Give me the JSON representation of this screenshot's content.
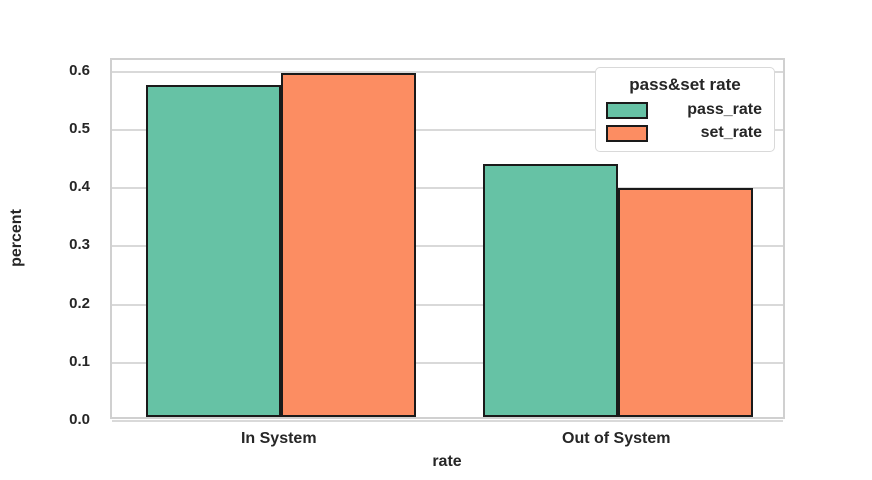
{
  "colors": {
    "pass_rate": "#66c2a5",
    "set_rate": "#fc8d62",
    "bar_edge": "#1a1a1a",
    "grid": "#d9d9d9",
    "axis_border": "#d0d0d0",
    "text": "#262626",
    "background": "#ffffff"
  },
  "chart_data": {
    "type": "bar",
    "categories": [
      "In System",
      "Out of System"
    ],
    "series": [
      {
        "name": "pass_rate",
        "values": [
          0.57,
          0.435
        ],
        "color": "#66c2a5"
      },
      {
        "name": "set_rate",
        "values": [
          0.59,
          0.393
        ],
        "color": "#fc8d62"
      }
    ],
    "title": "",
    "xlabel": "rate",
    "ylabel": "percent",
    "ylim": [
      0,
      0.62
    ],
    "yticks": [
      0.0,
      0.1,
      0.2,
      0.3,
      0.4,
      0.5,
      0.6
    ],
    "grid": true,
    "legend": {
      "title": "pass&set rate",
      "position": "upper right",
      "entries": [
        "pass_rate",
        "set_rate"
      ]
    }
  }
}
